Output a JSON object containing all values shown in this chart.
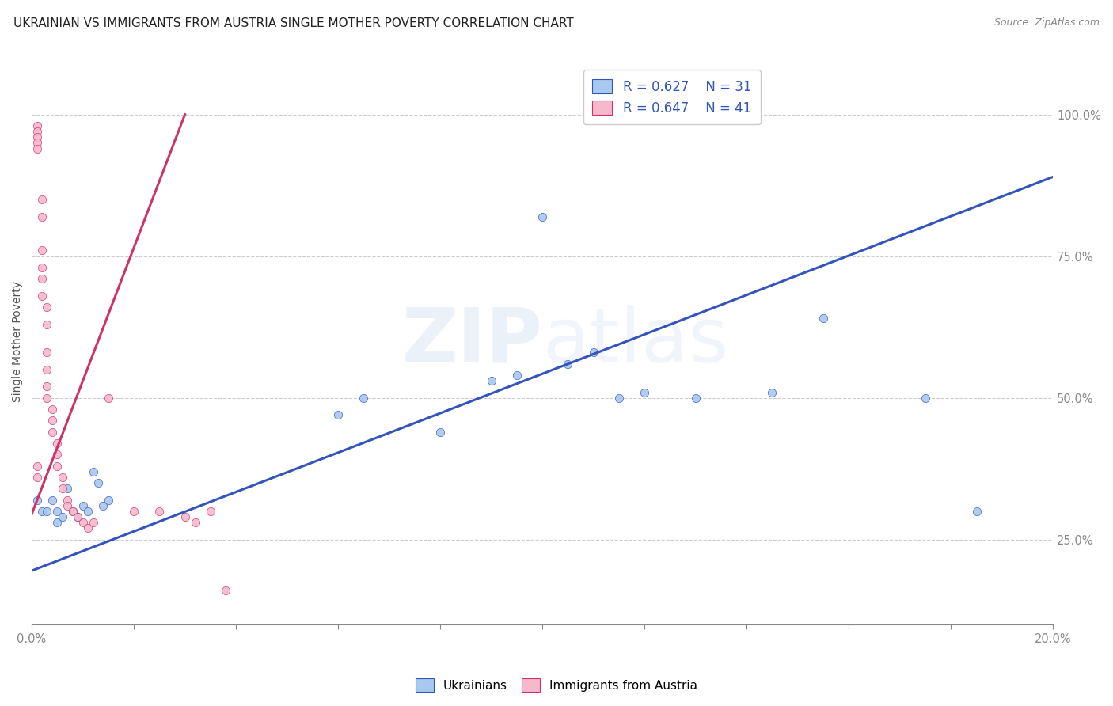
{
  "title": "UKRAINIAN VS IMMIGRANTS FROM AUSTRIA SINGLE MOTHER POVERTY CORRELATION CHART",
  "source": "Source: ZipAtlas.com",
  "ylabel": "Single Mother Poverty",
  "xlim": [
    0.0,
    0.2
  ],
  "ylim": [
    0.1,
    1.1
  ],
  "watermark": "ZIPatlas",
  "blue_R": "0.627",
  "blue_N": "31",
  "pink_R": "0.647",
  "pink_N": "41",
  "blue_color": "#a8c8f0",
  "pink_color": "#f8b8cc",
  "blue_line_color": "#3355bb",
  "pink_line_color": "#cc3366",
  "blue_scatter_x": [
    0.001,
    0.002,
    0.003,
    0.004,
    0.005,
    0.005,
    0.006,
    0.007,
    0.008,
    0.009,
    0.01,
    0.011,
    0.012,
    0.013,
    0.014,
    0.015,
    0.06,
    0.065,
    0.08,
    0.09,
    0.095,
    0.1,
    0.105,
    0.11,
    0.115,
    0.12,
    0.13,
    0.145,
    0.155,
    0.175,
    0.185
  ],
  "blue_scatter_y": [
    0.32,
    0.3,
    0.3,
    0.32,
    0.3,
    0.28,
    0.29,
    0.34,
    0.3,
    0.29,
    0.31,
    0.3,
    0.37,
    0.35,
    0.31,
    0.32,
    0.47,
    0.5,
    0.44,
    0.53,
    0.54,
    0.82,
    0.56,
    0.58,
    0.5,
    0.51,
    0.5,
    0.51,
    0.64,
    0.5,
    0.3
  ],
  "pink_scatter_x": [
    0.001,
    0.001,
    0.001,
    0.001,
    0.001,
    0.001,
    0.001,
    0.002,
    0.002,
    0.002,
    0.002,
    0.002,
    0.002,
    0.003,
    0.003,
    0.003,
    0.003,
    0.003,
    0.003,
    0.004,
    0.004,
    0.004,
    0.005,
    0.005,
    0.005,
    0.006,
    0.006,
    0.007,
    0.007,
    0.008,
    0.009,
    0.01,
    0.011,
    0.012,
    0.015,
    0.02,
    0.025,
    0.03,
    0.032,
    0.035,
    0.038
  ],
  "pink_scatter_y": [
    0.98,
    0.97,
    0.96,
    0.95,
    0.94,
    0.38,
    0.36,
    0.85,
    0.82,
    0.76,
    0.73,
    0.71,
    0.68,
    0.66,
    0.63,
    0.58,
    0.55,
    0.52,
    0.5,
    0.48,
    0.46,
    0.44,
    0.42,
    0.4,
    0.38,
    0.36,
    0.34,
    0.32,
    0.31,
    0.3,
    0.29,
    0.28,
    0.27,
    0.28,
    0.5,
    0.3,
    0.3,
    0.29,
    0.28,
    0.3,
    0.16
  ],
  "blue_line_x": [
    0.0,
    0.2
  ],
  "blue_line_y": [
    0.195,
    0.89
  ],
  "pink_line_x": [
    0.0,
    0.03
  ],
  "pink_line_y": [
    0.295,
    1.0
  ],
  "background_color": "#ffffff",
  "grid_color": "#cccccc",
  "title_fontsize": 11,
  "scatter_size": 55
}
